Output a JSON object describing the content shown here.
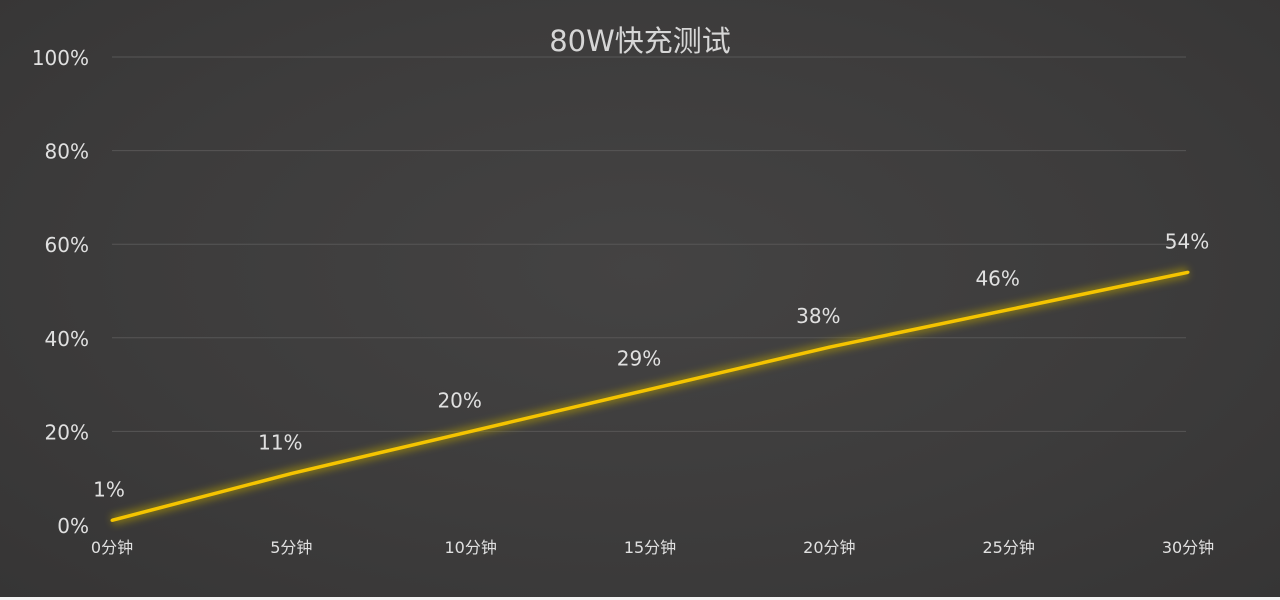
{
  "chart_data": {
    "type": "line",
    "title": "80W快充测试",
    "categories": [
      "0分钟",
      "5分钟",
      "10分钟",
      "15分钟",
      "20分钟",
      "25分钟",
      "30分钟"
    ],
    "x": [
      0,
      5,
      10,
      15,
      20,
      25,
      30
    ],
    "values": [
      1,
      11,
      20,
      29,
      38,
      46,
      54
    ],
    "data_labels": [
      "1%",
      "11%",
      "20%",
      "29%",
      "38%",
      "46%",
      "54%"
    ],
    "yticks": [
      "0%",
      "20%",
      "40%",
      "60%",
      "80%",
      "100%"
    ],
    "ylim": [
      0,
      100
    ],
    "xlabel": "",
    "ylabel": "",
    "grid": true,
    "colors": {
      "line": "#f5c400",
      "background": "#3d3c3c",
      "text": "#d8d8d8",
      "grid": "#575656"
    }
  }
}
